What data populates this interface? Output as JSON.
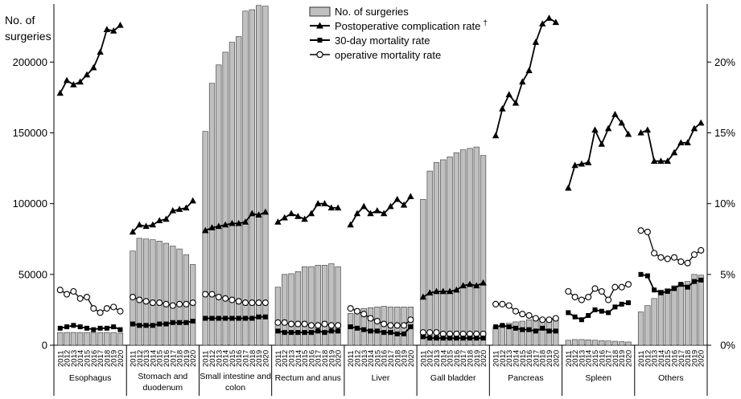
{
  "chart_data": {
    "type": "bar",
    "yleft_title_line1": "No. of",
    "yleft_title_line2": "surgeries",
    "yleft_ticks": [
      0,
      50000,
      100000,
      150000,
      200000
    ],
    "yleft_lim": [
      0,
      241000
    ],
    "yright_ticks": [
      "0%",
      "5%",
      "10%",
      "15%",
      "20%"
    ],
    "yright_tick_values": [
      0,
      5,
      10,
      15,
      20
    ],
    "yright_lim": [
      0,
      24.1
    ],
    "years": [
      "2011",
      "2012",
      "2013",
      "2014",
      "2015",
      "2016",
      "2017",
      "2018",
      "2019",
      "2020"
    ],
    "legend": {
      "bars": "No. of surgeries",
      "complication": "Postoperative complication rate",
      "complication_mark": "†",
      "mortality30": "30-day mortality rate",
      "operative": "operative mortality rate"
    },
    "groups": [
      {
        "organ": "Esophagus",
        "surgeries": [
          9000,
          9000,
          9000,
          9000,
          9000,
          9000,
          9000,
          9000,
          9000,
          8500
        ],
        "complication_rate": [
          17.8,
          18.7,
          18.4,
          18.6,
          19.1,
          19.6,
          20.7,
          22.3,
          22.2,
          22.6
        ],
        "mortality30_rate": [
          1.2,
          1.3,
          1.4,
          1.3,
          1.2,
          1.1,
          1.2,
          1.2,
          1.3,
          1.1
        ],
        "operative_rate": [
          3.9,
          3.6,
          3.8,
          3.3,
          3.4,
          2.6,
          2.3,
          2.6,
          2.7,
          2.4
        ]
      },
      {
        "organ": "Stomach and duodenum",
        "surgeries": [
          66500,
          75500,
          75000,
          74500,
          73500,
          72000,
          70000,
          68000,
          64000,
          57000
        ],
        "complication_rate": [
          8.0,
          8.5,
          8.4,
          8.5,
          8.8,
          8.9,
          9.5,
          9.6,
          9.7,
          10.2
        ],
        "mortality30_rate": [
          1.5,
          1.4,
          1.4,
          1.4,
          1.5,
          1.5,
          1.6,
          1.6,
          1.6,
          1.7
        ],
        "operative_rate": [
          3.4,
          3.2,
          3.1,
          3.0,
          3.0,
          2.9,
          2.8,
          2.9,
          2.9,
          3.0
        ]
      },
      {
        "organ": "Small intestine and colon",
        "surgeries": [
          151000,
          185000,
          198000,
          207000,
          214000,
          218000,
          236000,
          237000,
          240000,
          239500
        ],
        "complication_rate": [
          8.1,
          8.3,
          8.4,
          8.5,
          8.6,
          8.6,
          8.7,
          9.3,
          9.2,
          9.4
        ],
        "mortality30_rate": [
          1.9,
          1.9,
          1.9,
          1.9,
          1.9,
          1.9,
          1.9,
          1.9,
          2.0,
          2.0
        ],
        "operative_rate": [
          3.6,
          3.6,
          3.4,
          3.3,
          3.2,
          3.1,
          3.0,
          3.0,
          3.0,
          3.0
        ]
      },
      {
        "organ": "Rectum and anus",
        "surgeries": [
          41000,
          50000,
          50500,
          52000,
          55500,
          55500,
          56500,
          56500,
          57500,
          55500
        ],
        "complication_rate": [
          8.7,
          9.0,
          9.3,
          9.1,
          8.9,
          9.3,
          10.0,
          10.0,
          9.7,
          9.7
        ],
        "mortality30_rate": [
          1.0,
          0.9,
          0.9,
          0.9,
          0.9,
          0.9,
          1.0,
          0.9,
          1.0,
          1.0
        ],
        "operative_rate": [
          1.6,
          1.6,
          1.5,
          1.5,
          1.5,
          1.4,
          1.4,
          1.5,
          1.4,
          1.4
        ]
      },
      {
        "organ": "Liver",
        "surgeries": [
          22500,
          25500,
          26000,
          26500,
          27000,
          27500,
          27000,
          27000,
          27000,
          27000
        ],
        "complication_rate": [
          8.5,
          9.3,
          9.8,
          9.3,
          9.5,
          9.3,
          9.8,
          10.3,
          9.9,
          10.5
        ],
        "mortality30_rate": [
          1.3,
          1.2,
          1.1,
          1.0,
          1.0,
          0.9,
          0.9,
          0.8,
          0.8,
          1.3
        ],
        "operative_rate": [
          2.6,
          2.4,
          2.2,
          1.9,
          1.7,
          1.5,
          1.4,
          1.4,
          1.4,
          1.8
        ]
      },
      {
        "organ": "Gall bladder",
        "surgeries": [
          103000,
          123000,
          129000,
          131000,
          133000,
          136000,
          138000,
          139000,
          140000,
          134000
        ],
        "complication_rate": [
          3.4,
          3.7,
          3.8,
          3.8,
          3.8,
          3.9,
          4.2,
          4.3,
          4.2,
          4.4
        ],
        "mortality30_rate": [
          0.6,
          0.5,
          0.5,
          0.5,
          0.5,
          0.5,
          0.5,
          0.5,
          0.5,
          0.5
        ],
        "operative_rate": [
          0.9,
          0.9,
          0.9,
          0.8,
          0.8,
          0.8,
          0.8,
          0.8,
          0.8,
          0.8
        ]
      },
      {
        "organ": "Pancreas",
        "surgeries": [
          13000,
          14500,
          15500,
          16500,
          17000,
          18000,
          18500,
          18500,
          19000,
          19500
        ],
        "complication_rate": [
          14.8,
          16.7,
          17.7,
          17.1,
          18.6,
          19.4,
          21.4,
          22.7,
          23.1,
          22.8
        ],
        "mortality30_rate": [
          1.3,
          1.4,
          1.3,
          1.2,
          1.1,
          1.1,
          1.0,
          1.2,
          1.0,
          1.0
        ],
        "operative_rate": [
          2.9,
          2.9,
          2.8,
          2.4,
          2.2,
          2.1,
          1.9,
          1.8,
          1.8,
          1.9
        ]
      },
      {
        "organ": "Spleen",
        "surgeries": [
          3500,
          4000,
          4000,
          3800,
          3500,
          3200,
          3000,
          2800,
          2500,
          2300
        ],
        "complication_rate": [
          11.1,
          12.7,
          12.8,
          12.9,
          15.2,
          14.2,
          15.3,
          16.3,
          15.7,
          14.9
        ],
        "mortality30_rate": [
          2.3,
          2.0,
          1.8,
          2.1,
          2.5,
          2.4,
          2.3,
          2.7,
          2.9,
          3.0
        ],
        "operative_rate": [
          3.8,
          3.4,
          3.2,
          3.4,
          4.0,
          3.8,
          3.2,
          4.1,
          4.1,
          4.3
        ]
      },
      {
        "organ": "Others",
        "surgeries": [
          23500,
          28000,
          33000,
          39000,
          40000,
          42000,
          44000,
          45000,
          50000,
          49500
        ],
        "complication_rate": [
          15.0,
          15.2,
          13.0,
          13.0,
          13.0,
          13.6,
          14.3,
          14.3,
          15.3,
          15.7
        ],
        "mortality30_rate": [
          5.0,
          4.9,
          3.9,
          3.7,
          3.8,
          4.0,
          4.3,
          4.1,
          4.5,
          4.6
        ],
        "operative_rate": [
          8.1,
          8.0,
          6.5,
          6.2,
          6.1,
          6.2,
          5.9,
          5.8,
          6.4,
          6.7
        ]
      }
    ],
    "colors": {
      "bar_fill": "#c0c0c0",
      "bar_stroke": "#333333",
      "line": "#000000",
      "axis": "#000000"
    }
  }
}
